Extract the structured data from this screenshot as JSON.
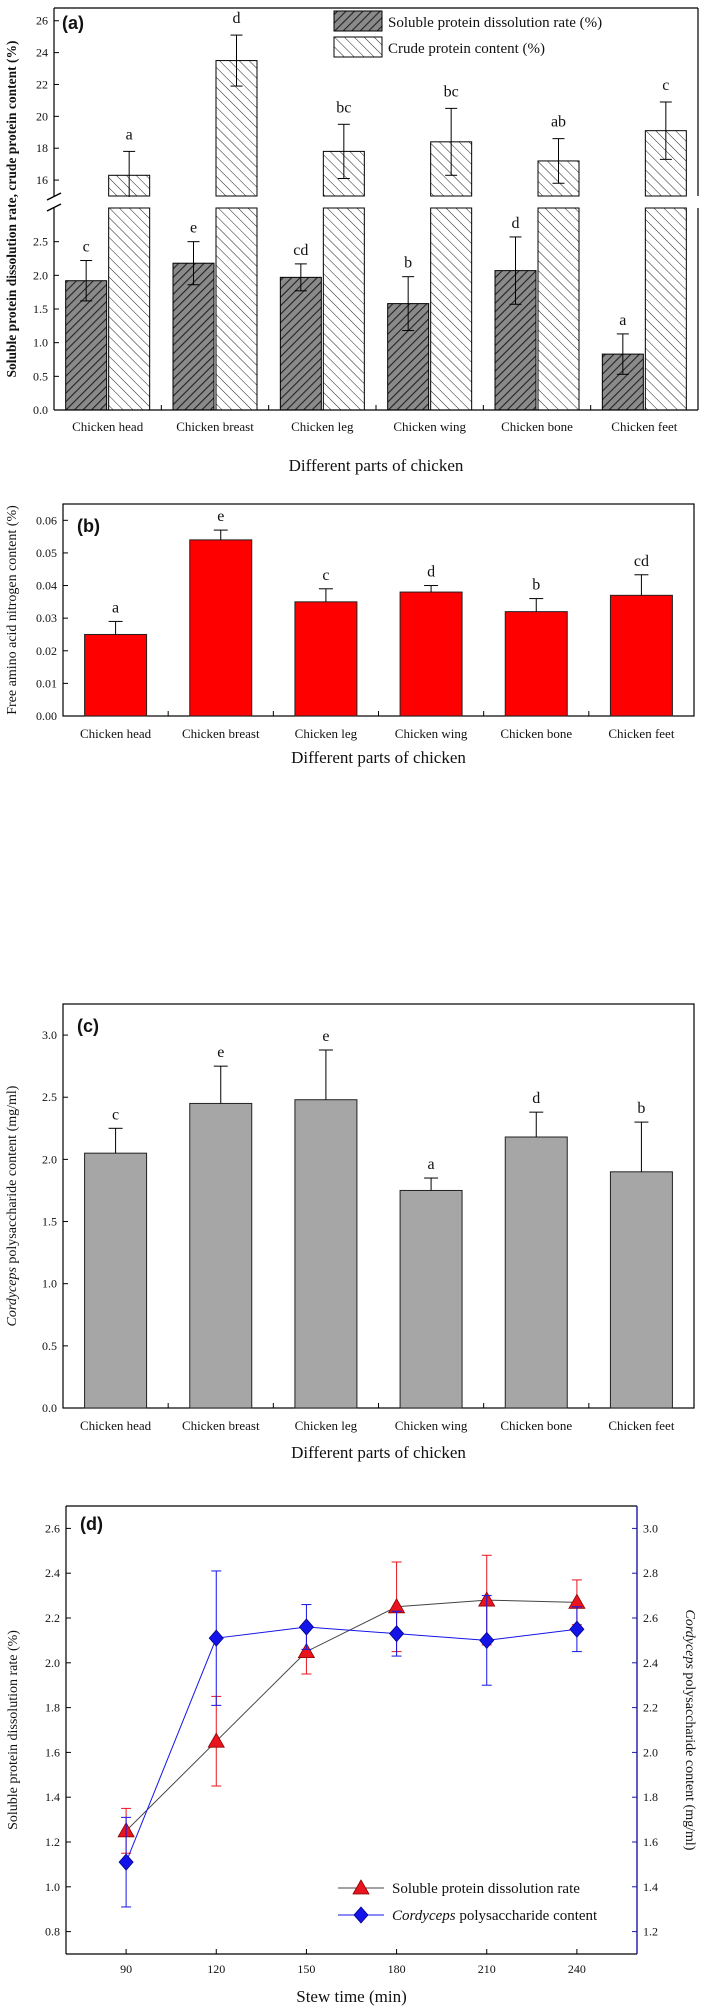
{
  "chart_data": [
    {
      "panel": "(a)",
      "type": "bar",
      "xlabel": "Different parts of chicken",
      "ylabel": "Soluble protein dissolution rate, crude protein content (%)",
      "categories": [
        "Chicken head",
        "Chicken breast",
        "Chicken leg",
        "Chicken wing",
        "Chicken bone",
        "Chicken feet"
      ],
      "axis_break": {
        "lower_range": [
          0,
          3.0
        ],
        "upper_range": [
          15,
          26.8
        ]
      },
      "lower_ticks": [
        "0.0",
        "0.5",
        "1.0",
        "1.5",
        "2.0",
        "2.5"
      ],
      "upper_ticks": [
        "16",
        "18",
        "20",
        "22",
        "24",
        "26"
      ],
      "legend_position": "top-right",
      "series": [
        {
          "name": "Soluble protein dissolution rate (%)",
          "style": "dark-hatched",
          "values": [
            1.92,
            2.18,
            1.97,
            1.58,
            2.07,
            0.83
          ],
          "errors": [
            0.3,
            0.32,
            0.2,
            0.4,
            0.5,
            0.3
          ],
          "letters": [
            "c",
            "e",
            "cd",
            "b",
            "d",
            "a"
          ]
        },
        {
          "name": "Crude protein content (%)",
          "style": "light-hatched",
          "values": [
            16.3,
            23.5,
            17.8,
            18.4,
            17.2,
            19.1
          ],
          "errors": [
            1.5,
            1.6,
            1.7,
            2.1,
            1.4,
            1.8
          ],
          "letters": [
            "a",
            "d",
            "bc",
            "bc",
            "ab",
            "c"
          ]
        }
      ]
    },
    {
      "panel": "(b)",
      "type": "bar",
      "xlabel": "Different parts of chicken",
      "ylabel": "Free amino acid nitrogen content (%)",
      "categories": [
        "Chicken head",
        "Chicken breast",
        "Chicken leg",
        "Chicken wing",
        "Chicken bone",
        "Chicken feet"
      ],
      "ylim": [
        0,
        0.065
      ],
      "yticks": [
        "0.00",
        "0.01",
        "0.02",
        "0.03",
        "0.04",
        "0.05",
        "0.06"
      ],
      "color": "#ff0000",
      "values": [
        0.025,
        0.054,
        0.035,
        0.038,
        0.032,
        0.037
      ],
      "errors": [
        0.004,
        0.003,
        0.004,
        0.002,
        0.004,
        0.0063
      ],
      "letters": [
        "a",
        "e",
        "c",
        "d",
        "b",
        "cd"
      ]
    },
    {
      "panel": "(c)",
      "type": "bar",
      "xlabel": "Different parts of chicken",
      "ylabel_italic": "Cordyceps",
      "ylabel": " polysaccharide content (mg/ml)",
      "categories": [
        "Chicken head",
        "Chicken breast",
        "Chicken leg",
        "Chicken wing",
        "Chicken bone",
        "Chicken feet"
      ],
      "ylim": [
        0,
        3.25
      ],
      "yticks": [
        "0.0",
        "0.5",
        "1.0",
        "1.5",
        "2.0",
        "2.5",
        "3.0"
      ],
      "color": "#a6a6a6",
      "values": [
        2.05,
        2.45,
        2.48,
        1.75,
        2.18,
        1.9
      ],
      "errors": [
        0.2,
        0.3,
        0.4,
        0.1,
        0.2,
        0.4
      ],
      "letters": [
        "c",
        "e",
        "e",
        "a",
        "d",
        "b"
      ]
    },
    {
      "panel": "(d)",
      "type": "line",
      "xlabel": "Stew time (min)",
      "ylabel_left": "Soluble protein dissolution rate (%)",
      "ylabel_right_italic": "Cordyceps",
      "ylabel_right": " polysaccharide content (mg/ml)",
      "x": [
        90,
        120,
        150,
        180,
        210,
        240
      ],
      "xlim": [
        70,
        260
      ],
      "ylim_left": [
        0.7,
        2.7
      ],
      "ylim_right": [
        1.1,
        3.1
      ],
      "xticks": [
        "90",
        "120",
        "150",
        "180",
        "210",
        "240"
      ],
      "yticks_left": [
        "0.8",
        "1.0",
        "1.2",
        "1.4",
        "1.6",
        "1.8",
        "2.0",
        "2.2",
        "2.4",
        "2.6"
      ],
      "yticks_right": [
        "1.2",
        "1.4",
        "1.6",
        "1.8",
        "2.0",
        "2.2",
        "2.4",
        "2.6",
        "2.8",
        "3.0"
      ],
      "legend_position": "bottom-right",
      "series": [
        {
          "name": "Soluble protein dissolution rate",
          "axis": "left",
          "marker": "triangle",
          "color": "#e8141e",
          "values": [
            1.25,
            1.65,
            2.05,
            2.25,
            2.28,
            2.27
          ],
          "errors": [
            0.1,
            0.2,
            0.1,
            0.2,
            0.2,
            0.1
          ]
        },
        {
          "name_italic": "Cordyceps",
          "name": " polysaccharide content",
          "axis": "right",
          "marker": "diamond",
          "color": "#1414e8",
          "values": [
            1.51,
            2.51,
            2.56,
            2.53,
            2.5,
            2.55
          ],
          "errors": [
            0.2,
            0.3,
            0.1,
            0.1,
            0.2,
            0.1
          ]
        }
      ]
    }
  ]
}
